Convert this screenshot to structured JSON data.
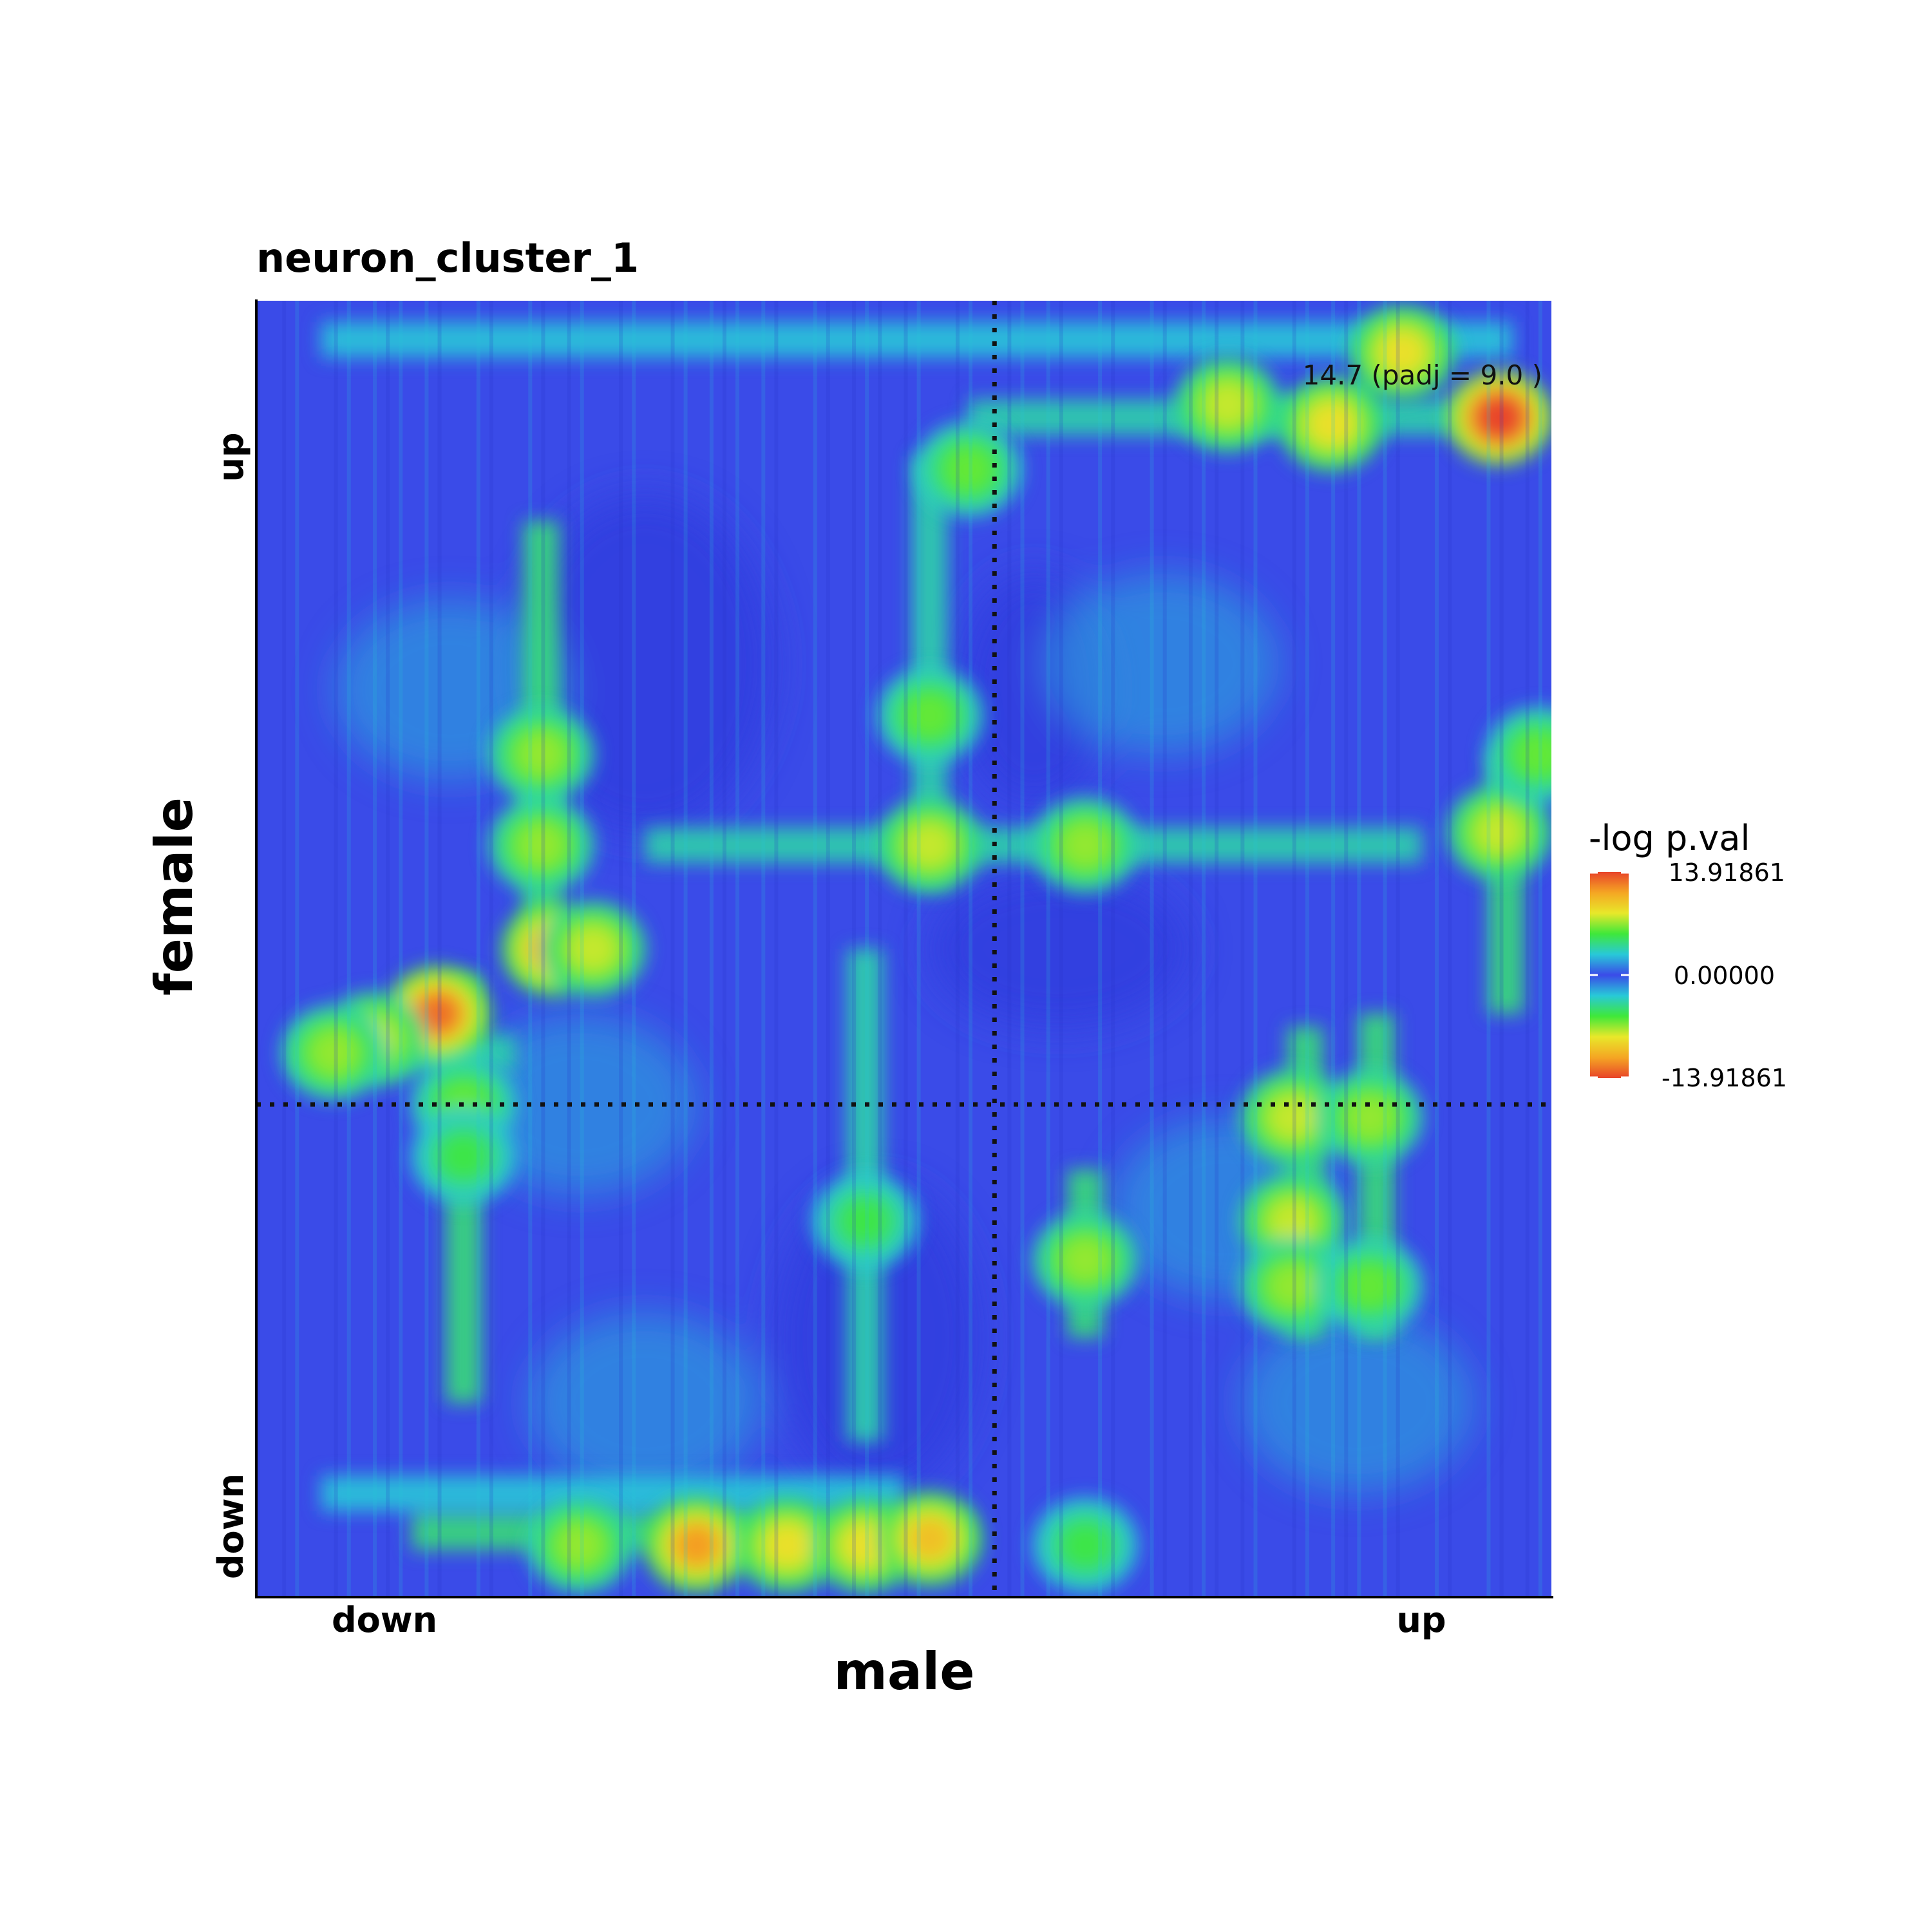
{
  "chart_data": {
    "type": "heatmap",
    "title": "neuron_cluster_1",
    "xlabel": "male",
    "ylabel": "female",
    "x_tick_labels": [
      "down",
      "up"
    ],
    "y_tick_labels": [
      "up",
      "down"
    ],
    "annotation": "14.7 (padj = 9.0 )",
    "legend": {
      "title": "-log p.val",
      "max_label": "13.91861",
      "mid_label": "0.00000",
      "min_label": "-13.91861",
      "max": 13.91861,
      "min": -13.91861,
      "colors": [
        "#e8442a",
        "#f5a623",
        "#e8e82a",
        "#3fe83a",
        "#28c9d8",
        "#3a4be8",
        "#28c9d8",
        "#3fe83a",
        "#e8e82a",
        "#f5a623",
        "#e8442a"
      ]
    },
    "divider_x": 0.57,
    "divider_y": 0.62,
    "hotspots": [
      {
        "x": 0.96,
        "y": 0.09,
        "value": 14.7
      },
      {
        "x": 0.83,
        "y": 0.095,
        "value": 10
      },
      {
        "x": 0.75,
        "y": 0.08,
        "value": 9
      },
      {
        "x": 0.885,
        "y": 0.04,
        "value": 10
      },
      {
        "x": 0.14,
        "y": 0.55,
        "value": 13
      },
      {
        "x": 0.09,
        "y": 0.57,
        "value": 9
      },
      {
        "x": 0.06,
        "y": 0.58,
        "value": 8
      },
      {
        "x": 0.23,
        "y": 0.5,
        "value": 12
      },
      {
        "x": 0.26,
        "y": 0.5,
        "value": 9
      },
      {
        "x": 0.22,
        "y": 0.42,
        "value": 8
      },
      {
        "x": 0.22,
        "y": 0.35,
        "value": 8
      },
      {
        "x": 0.52,
        "y": 0.42,
        "value": 9
      },
      {
        "x": 0.52,
        "y": 0.32,
        "value": 7
      },
      {
        "x": 0.55,
        "y": 0.13,
        "value": 7
      },
      {
        "x": 0.64,
        "y": 0.42,
        "value": 8
      },
      {
        "x": 0.96,
        "y": 0.41,
        "value": 9
      },
      {
        "x": 0.99,
        "y": 0.35,
        "value": 7
      },
      {
        "x": 0.8,
        "y": 0.63,
        "value": 9
      },
      {
        "x": 0.86,
        "y": 0.63,
        "value": 8
      },
      {
        "x": 0.8,
        "y": 0.71,
        "value": 9
      },
      {
        "x": 0.8,
        "y": 0.76,
        "value": 8
      },
      {
        "x": 0.86,
        "y": 0.76,
        "value": 7
      },
      {
        "x": 0.64,
        "y": 0.74,
        "value": 8
      },
      {
        "x": 0.34,
        "y": 0.96,
        "value": 12
      },
      {
        "x": 0.41,
        "y": 0.96,
        "value": 10
      },
      {
        "x": 0.47,
        "y": 0.96,
        "value": 10
      },
      {
        "x": 0.52,
        "y": 0.955,
        "value": 11
      },
      {
        "x": 0.25,
        "y": 0.96,
        "value": 8
      },
      {
        "x": 0.64,
        "y": 0.96,
        "value": 6
      },
      {
        "x": 0.47,
        "y": 0.71,
        "value": 6
      },
      {
        "x": 0.16,
        "y": 0.62,
        "value": 7
      },
      {
        "x": 0.16,
        "y": 0.66,
        "value": 6
      }
    ],
    "ridges": [
      {
        "orient": "v",
        "pos": 0.22,
        "from": 0.17,
        "to": 0.52,
        "value": 5
      },
      {
        "orient": "v",
        "pos": 0.16,
        "from": 0.52,
        "to": 0.85,
        "value": 5
      },
      {
        "orient": "v",
        "pos": 0.47,
        "from": 0.5,
        "to": 0.88,
        "value": 4
      },
      {
        "orient": "v",
        "pos": 0.52,
        "from": 0.12,
        "to": 0.45,
        "value": 4
      },
      {
        "orient": "v",
        "pos": 0.64,
        "from": 0.67,
        "to": 0.8,
        "value": 5
      },
      {
        "orient": "v",
        "pos": 0.81,
        "from": 0.56,
        "to": 0.8,
        "value": 5
      },
      {
        "orient": "v",
        "pos": 0.865,
        "from": 0.55,
        "to": 0.8,
        "value": 5
      },
      {
        "orient": "v",
        "pos": 0.965,
        "from": 0.35,
        "to": 0.55,
        "value": 5
      },
      {
        "orient": "h",
        "pos": 0.42,
        "from": 0.3,
        "to": 0.9,
        "value": 4
      },
      {
        "orient": "h",
        "pos": 0.95,
        "from": 0.12,
        "to": 0.55,
        "value": 5
      },
      {
        "orient": "h",
        "pos": 0.09,
        "from": 0.55,
        "to": 0.99,
        "value": 4
      },
      {
        "orient": "h",
        "pos": 0.03,
        "from": 0.05,
        "to": 0.97,
        "value": 3
      },
      {
        "orient": "h",
        "pos": 0.58,
        "from": 0.03,
        "to": 0.2,
        "value": 4
      },
      {
        "orient": "h",
        "pos": 0.92,
        "from": 0.05,
        "to": 0.5,
        "value": 3
      }
    ],
    "cold_regions": [
      {
        "x": 0.3,
        "y": 0.28,
        "rx": 0.1,
        "ry": 0.13
      },
      {
        "x": 0.62,
        "y": 0.5,
        "rx": 0.1,
        "ry": 0.06
      },
      {
        "x": 0.6,
        "y": 0.3,
        "rx": 0.06,
        "ry": 0.09
      },
      {
        "x": 0.48,
        "y": 0.8,
        "rx": 0.08,
        "ry": 0.12
      }
    ]
  }
}
